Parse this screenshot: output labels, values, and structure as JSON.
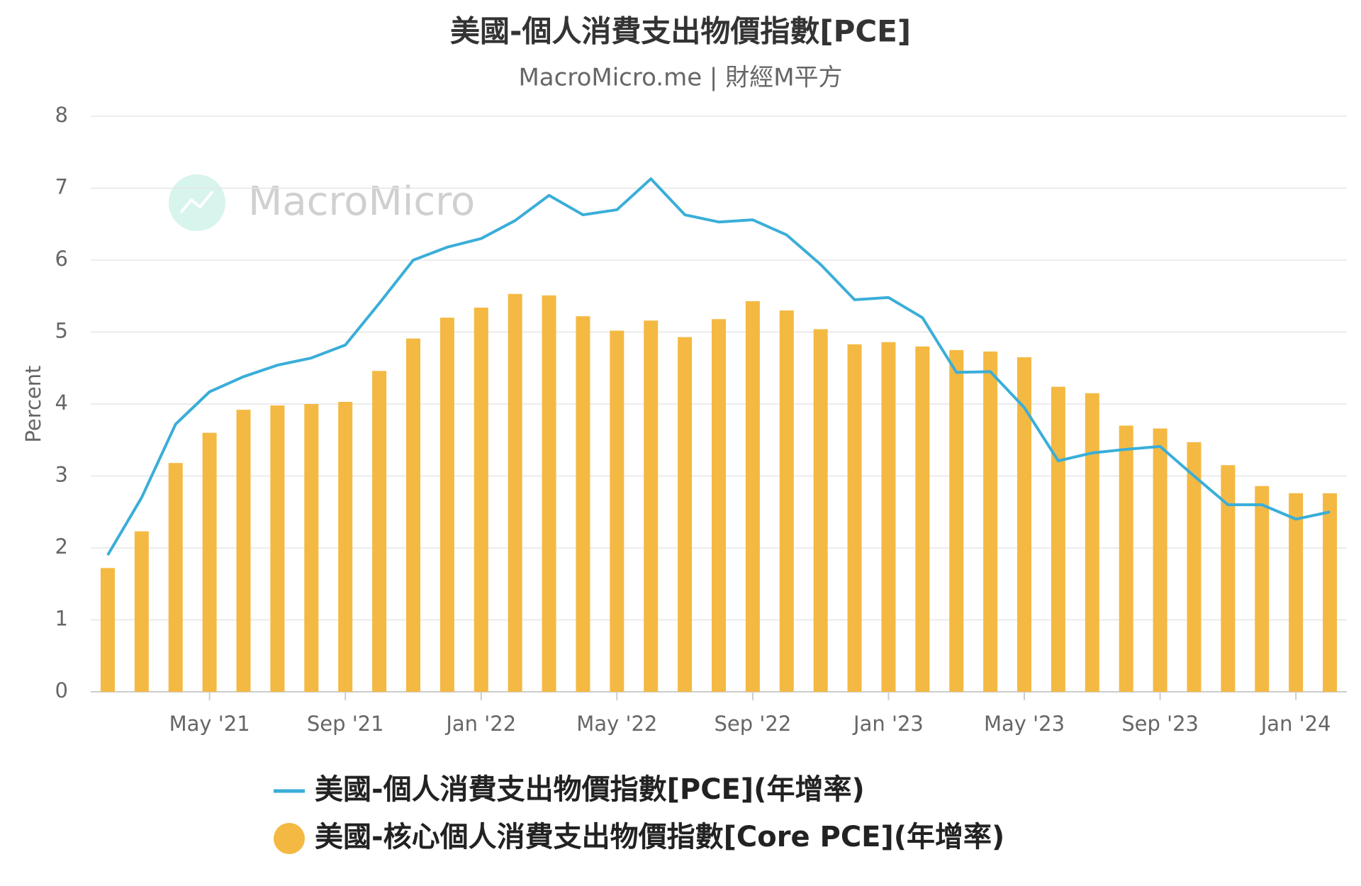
{
  "chart_data": {
    "type": "bar-line",
    "title": "美國-個人消費支出物價指數[PCE]",
    "subtitle": "MacroMicro.me | 財經M平方",
    "watermark": "MacroMicro",
    "y_label": "Percent",
    "categories": [
      null,
      null,
      null,
      "May '21",
      null,
      null,
      null,
      "Sep '21",
      null,
      null,
      null,
      "Jan '22",
      null,
      null,
      null,
      "May '22",
      null,
      null,
      null,
      "Sep '22",
      null,
      null,
      null,
      "Jan '23",
      null,
      null,
      null,
      "May '23",
      null,
      null,
      null,
      "Sep '23",
      null,
      null,
      null,
      "Jan '24",
      null
    ],
    "series": [
      {
        "name": "美國-個人消費支出物價指數[PCE](年增率)",
        "type": "line",
        "color": "#3aaed8",
        "values": [
          1.9,
          2.7,
          3.72,
          4.17,
          4.38,
          4.54,
          4.64,
          4.82,
          5.4,
          6.0,
          6.18,
          6.3,
          6.55,
          6.9,
          6.63,
          6.7,
          7.13,
          6.63,
          6.53,
          6.56,
          6.35,
          5.94,
          5.45,
          5.48,
          5.2,
          4.44,
          4.45,
          3.95,
          3.21,
          3.32,
          3.37,
          3.41,
          3.0,
          2.6,
          2.6,
          2.4,
          2.5
        ]
      },
      {
        "name": "美國-核心個人消費支出物價指數[Core PCE](年增率)",
        "type": "bar",
        "color": "#f4b942",
        "values": [
          1.72,
          2.23,
          3.18,
          3.6,
          3.92,
          3.98,
          4.0,
          4.03,
          4.46,
          4.91,
          5.2,
          5.34,
          5.53,
          5.51,
          5.22,
          5.02,
          5.16,
          4.93,
          5.18,
          5.43,
          5.3,
          5.04,
          4.83,
          4.86,
          4.8,
          4.75,
          4.73,
          4.65,
          4.24,
          4.15,
          3.7,
          3.66,
          3.47,
          3.15,
          2.86,
          2.76,
          2.76
        ]
      }
    ],
    "ylim": [
      0,
      8
    ],
    "yticks": [
      0,
      1,
      2,
      3,
      4,
      5,
      6,
      7,
      8
    ],
    "grid": true
  }
}
